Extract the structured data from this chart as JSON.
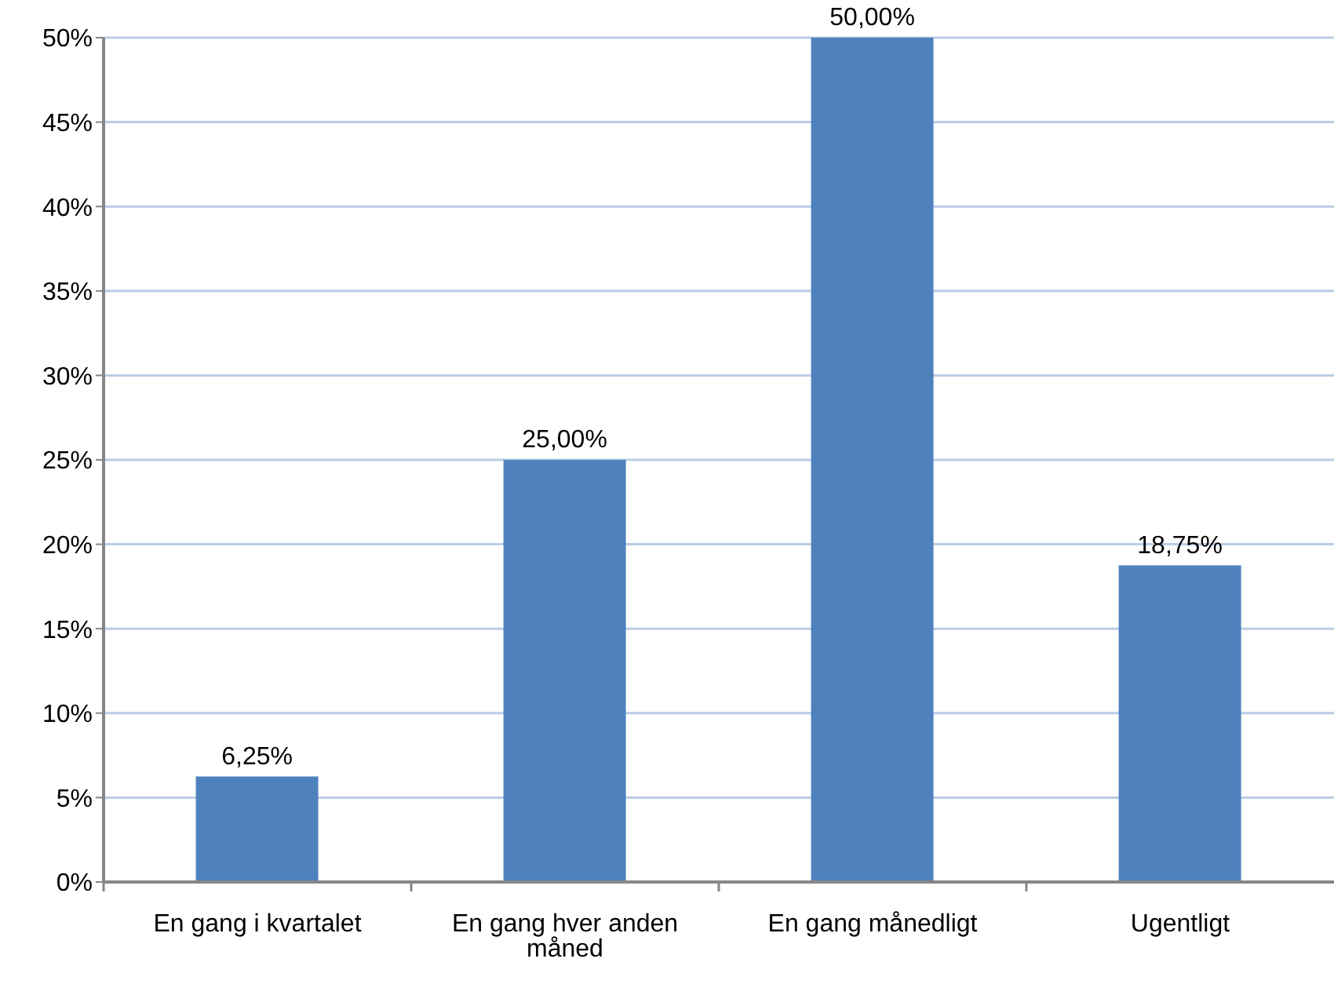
{
  "chart_data": {
    "type": "bar",
    "categories": [
      "En gang i kvartalet",
      "En gang hver anden måned",
      "En gang månedligt",
      "Ugentligt"
    ],
    "values": [
      6.25,
      25,
      50,
      18.75
    ],
    "value_labels": [
      "6,25%",
      "25,00%",
      "50,00%",
      "18,75%"
    ],
    "color": "#4f81bd",
    "ylim": [
      0,
      50
    ],
    "yticks": [
      {
        "value": 0,
        "label": "0%"
      },
      {
        "value": 5,
        "label": "5%"
      },
      {
        "value": 10,
        "label": "10%"
      },
      {
        "value": 15,
        "label": "15%"
      },
      {
        "value": 20,
        "label": "20%"
      },
      {
        "value": 25,
        "label": "25%"
      },
      {
        "value": 30,
        "label": "30%"
      },
      {
        "value": 35,
        "label": "35%"
      },
      {
        "value": 40,
        "label": "40%"
      },
      {
        "value": 45,
        "label": "45%"
      },
      {
        "value": 50,
        "label": "50%"
      }
    ],
    "grid": "y"
  }
}
